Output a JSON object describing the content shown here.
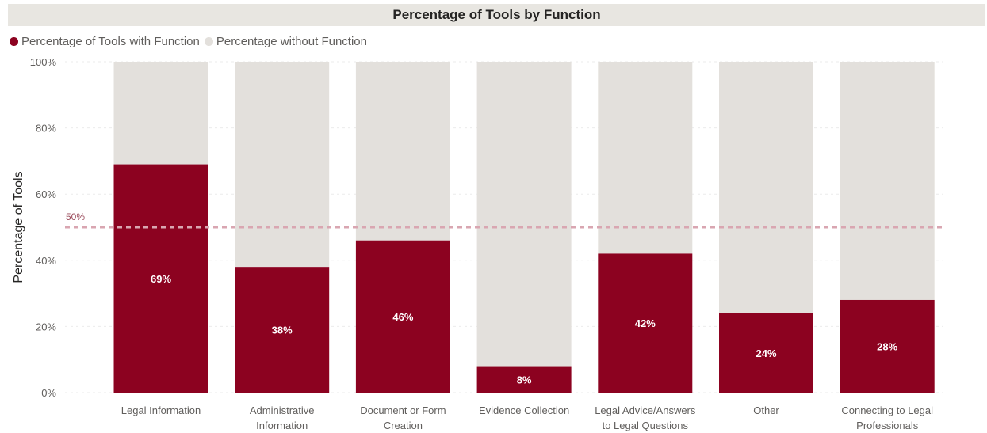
{
  "colors": {
    "with": "#8c0220",
    "without": "#e3e0dc",
    "reference": "#d9a6b1",
    "axis_text": "#605e5c",
    "grid": "#ebebeb"
  },
  "chart_data": {
    "type": "bar",
    "stacked": true,
    "percent": true,
    "title": "Percentage of Tools by Function",
    "ylabel": "Percentage of Tools",
    "xlabel": "",
    "ylim": [
      0,
      100
    ],
    "yticks": [
      "0%",
      "20%",
      "40%",
      "60%",
      "80%",
      "100%"
    ],
    "grid": true,
    "legend_position": "top-left",
    "categories": [
      [
        "Legal Information"
      ],
      [
        "Administrative",
        "Information"
      ],
      [
        "Document or Form",
        "Creation"
      ],
      [
        "Evidence Collection"
      ],
      [
        "Legal Advice/Answers",
        "to Legal Questions"
      ],
      [
        "Other"
      ],
      [
        "Connecting to Legal",
        "Professionals"
      ]
    ],
    "series": [
      {
        "name": "Percentage of Tools with Function",
        "values": [
          69,
          38,
          46,
          8,
          42,
          24,
          28
        ],
        "labels": [
          "69%",
          "38%",
          "46%",
          "8%",
          "42%",
          "24%",
          "28%"
        ]
      },
      {
        "name": "Percentage without Function",
        "values": [
          31,
          62,
          54,
          92,
          58,
          76,
          72
        ]
      }
    ],
    "reference_line": {
      "value": 50,
      "label": "50%"
    }
  }
}
